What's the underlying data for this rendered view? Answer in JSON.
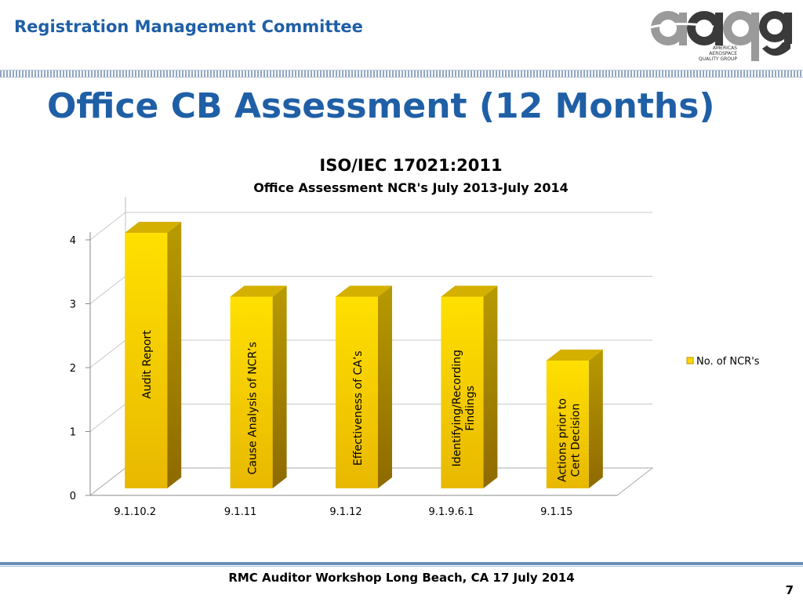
{
  "header": {
    "title": "Registration Management Committee"
  },
  "logo": {
    "letters": "aaqg",
    "caption_line1": "AMERICAS AEROSPACE",
    "caption_line2": "QUALITY GROUP"
  },
  "slide": {
    "title": "Office CB Assessment (12 Months)"
  },
  "colors": {
    "brand_blue": "#1f5fa6",
    "bar_front": "#ffd700",
    "bar_side": "#b89200",
    "bar_top": "#d4b000"
  },
  "chart_data": {
    "type": "bar",
    "title": "ISO/IEC 17021:2011",
    "subtitle": "Office Assessment NCR's July 2013-July 2014",
    "categories": [
      "9.1.10.2",
      "9.1.11",
      "9.1.12",
      "9.1.9.6.1",
      "9.1.15"
    ],
    "series": [
      {
        "name": "No. of NCR's",
        "values": [
          4,
          3,
          3,
          3,
          2
        ]
      }
    ],
    "bar_labels": [
      [
        "Audit Report"
      ],
      [
        "Cause Analysis of NCR’s"
      ],
      [
        "Effectiveness of CA’s"
      ],
      [
        "Identifying/Recording",
        "Findings"
      ],
      [
        "Actions prior to",
        "Cert Decision"
      ]
    ],
    "yticks": [
      0,
      1,
      2,
      3,
      4
    ],
    "ylim": [
      0,
      4
    ],
    "grid": true,
    "legend": "right",
    "style": "3d"
  },
  "footer": {
    "text": "RMC Auditor Workshop Long Beach, CA 17 July 2014",
    "page_number": "7"
  }
}
